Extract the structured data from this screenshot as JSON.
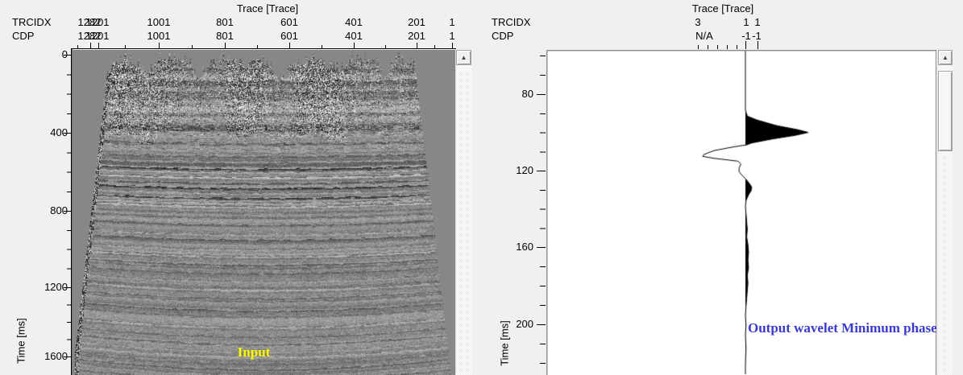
{
  "colors": {
    "window_bg": "#f0f0f0",
    "seismic_bg": "#878787",
    "plot_bg": "#ffffff",
    "axis_color": "#000000",
    "input_label_color": "#ffff00",
    "wavelet_label_color": "#3a3acf"
  },
  "left_panel": {
    "title": "Trace [Trace]",
    "rows": [
      {
        "label": "TRCIDX",
        "values": [
          "1282",
          "1201",
          "1001",
          "801",
          "601",
          "401",
          "201",
          "1"
        ]
      },
      {
        "label": "CDP",
        "values": [
          "1282",
          "1201",
          "1001",
          "801",
          "601",
          "401",
          "201",
          "1"
        ]
      }
    ],
    "time_axis": {
      "label": "Time [ms]",
      "ticks": [
        "0",
        "400",
        "800",
        "1200",
        "1600"
      ]
    },
    "overlay_label": "Input",
    "scrollbar": {
      "up_arrow": "▲"
    }
  },
  "right_panel": {
    "title": "Trace [Trace]",
    "rows": [
      {
        "label": "TRCIDX",
        "values": [
          "3",
          "1",
          "1"
        ]
      },
      {
        "label": "CDP",
        "values": [
          "N/A",
          "-1",
          "-1"
        ]
      }
    ],
    "time_axis": {
      "label": "Time [ms]",
      "ticks": [
        "80",
        "120",
        "160",
        "200"
      ]
    },
    "overlay_label": "Output wavelet Minimum phase",
    "scrollbar": {
      "up_arrow": "▲"
    }
  },
  "chart_data": [
    {
      "type": "heatmap",
      "title": "Input",
      "xlabel": "Trace [Trace]",
      "ylabel": "Time [ms]",
      "x_tick_labels": [
        "1282",
        "1201",
        "1001",
        "801",
        "601",
        "401",
        "201",
        "1"
      ],
      "y_ticks_ms": [
        0,
        400,
        800,
        1200,
        1600
      ],
      "y_range_ms": [
        0,
        1700
      ],
      "note": "grayscale variable-density stacked seismic section with jagged mute at top and tapered lower-left edge",
      "render": {
        "seed": 7,
        "layers": [
          [
            95,
            -0.5
          ],
          [
            103,
            0.4
          ],
          [
            112,
            -0.45
          ],
          [
            120,
            0.35
          ],
          [
            128,
            -0.4
          ],
          [
            134,
            0.3
          ],
          [
            143,
            -0.95
          ],
          [
            147,
            0.5
          ],
          [
            153,
            0.75
          ],
          [
            160,
            -0.5
          ],
          [
            166,
            -0.9
          ],
          [
            172,
            0.45
          ],
          [
            178,
            -0.85
          ],
          [
            184,
            0.5
          ],
          [
            188,
            0.65
          ],
          [
            210,
            -0.45
          ],
          [
            222,
            0.4
          ],
          [
            228,
            -0.55
          ],
          [
            240,
            0.35
          ],
          [
            248,
            0.5
          ],
          [
            258,
            -0.5
          ],
          [
            268,
            -0.4
          ],
          [
            278,
            0.35
          ],
          [
            288,
            0.45
          ],
          [
            298,
            -0.4
          ],
          [
            313,
            -0.5
          ],
          [
            322,
            0.35
          ],
          [
            333,
            0.45
          ],
          [
            344,
            -0.4
          ],
          [
            353,
            -0.45
          ],
          [
            362,
            0.3
          ],
          [
            368,
            0.4
          ],
          [
            376,
            -0.35
          ],
          [
            383,
            -0.5
          ],
          [
            390,
            0.3
          ],
          [
            396,
            -0.35
          ]
        ]
      }
    },
    {
      "type": "line",
      "title": "Output wavelet Minimum phase",
      "ylabel": "Time [ms]",
      "y_ticks_ms": [
        80,
        120,
        160,
        200
      ],
      "y_range_ms": [
        57,
        226
      ],
      "series": [
        {
          "name": "wavelet",
          "points_t_amp": [
            [
              57,
              0
            ],
            [
              88,
              0
            ],
            [
              91,
              0.03
            ],
            [
              93,
              0.18
            ],
            [
              96,
              0.5
            ],
            [
              98,
              0.82
            ],
            [
              99.5,
              1.0
            ],
            [
              101,
              0.8
            ],
            [
              103,
              0.42
            ],
            [
              105,
              0.1
            ],
            [
              106,
              0.02
            ],
            [
              107,
              -0.18
            ],
            [
              109,
              -0.5
            ],
            [
              111,
              -0.66
            ],
            [
              112,
              -0.68
            ],
            [
              113,
              -0.5
            ],
            [
              114.5,
              -0.12
            ],
            [
              116,
              -0.07
            ],
            [
              118,
              -0.1
            ],
            [
              120,
              -0.1
            ],
            [
              122,
              -0.05
            ],
            [
              124,
              0.01
            ],
            [
              126,
              0.06
            ],
            [
              128,
              0.1
            ],
            [
              130,
              0.09
            ],
            [
              132,
              0.05
            ],
            [
              135,
              0.01
            ],
            [
              138,
              0
            ],
            [
              142,
              0.01
            ],
            [
              146,
              0.02
            ],
            [
              150,
              0.03
            ],
            [
              154,
              0.02
            ],
            [
              158,
              0.04
            ],
            [
              162,
              0.05
            ],
            [
              166,
              0.04
            ],
            [
              170,
              0.05
            ],
            [
              174,
              0.03
            ],
            [
              178,
              0.04
            ],
            [
              182,
              0.03
            ],
            [
              186,
              0.02
            ],
            [
              190,
              0.01
            ],
            [
              195,
              0
            ],
            [
              200,
              0.01
            ],
            [
              205,
              0
            ],
            [
              212,
              0.01
            ],
            [
              220,
              0
            ],
            [
              226,
              0
            ]
          ]
        }
      ]
    }
  ]
}
